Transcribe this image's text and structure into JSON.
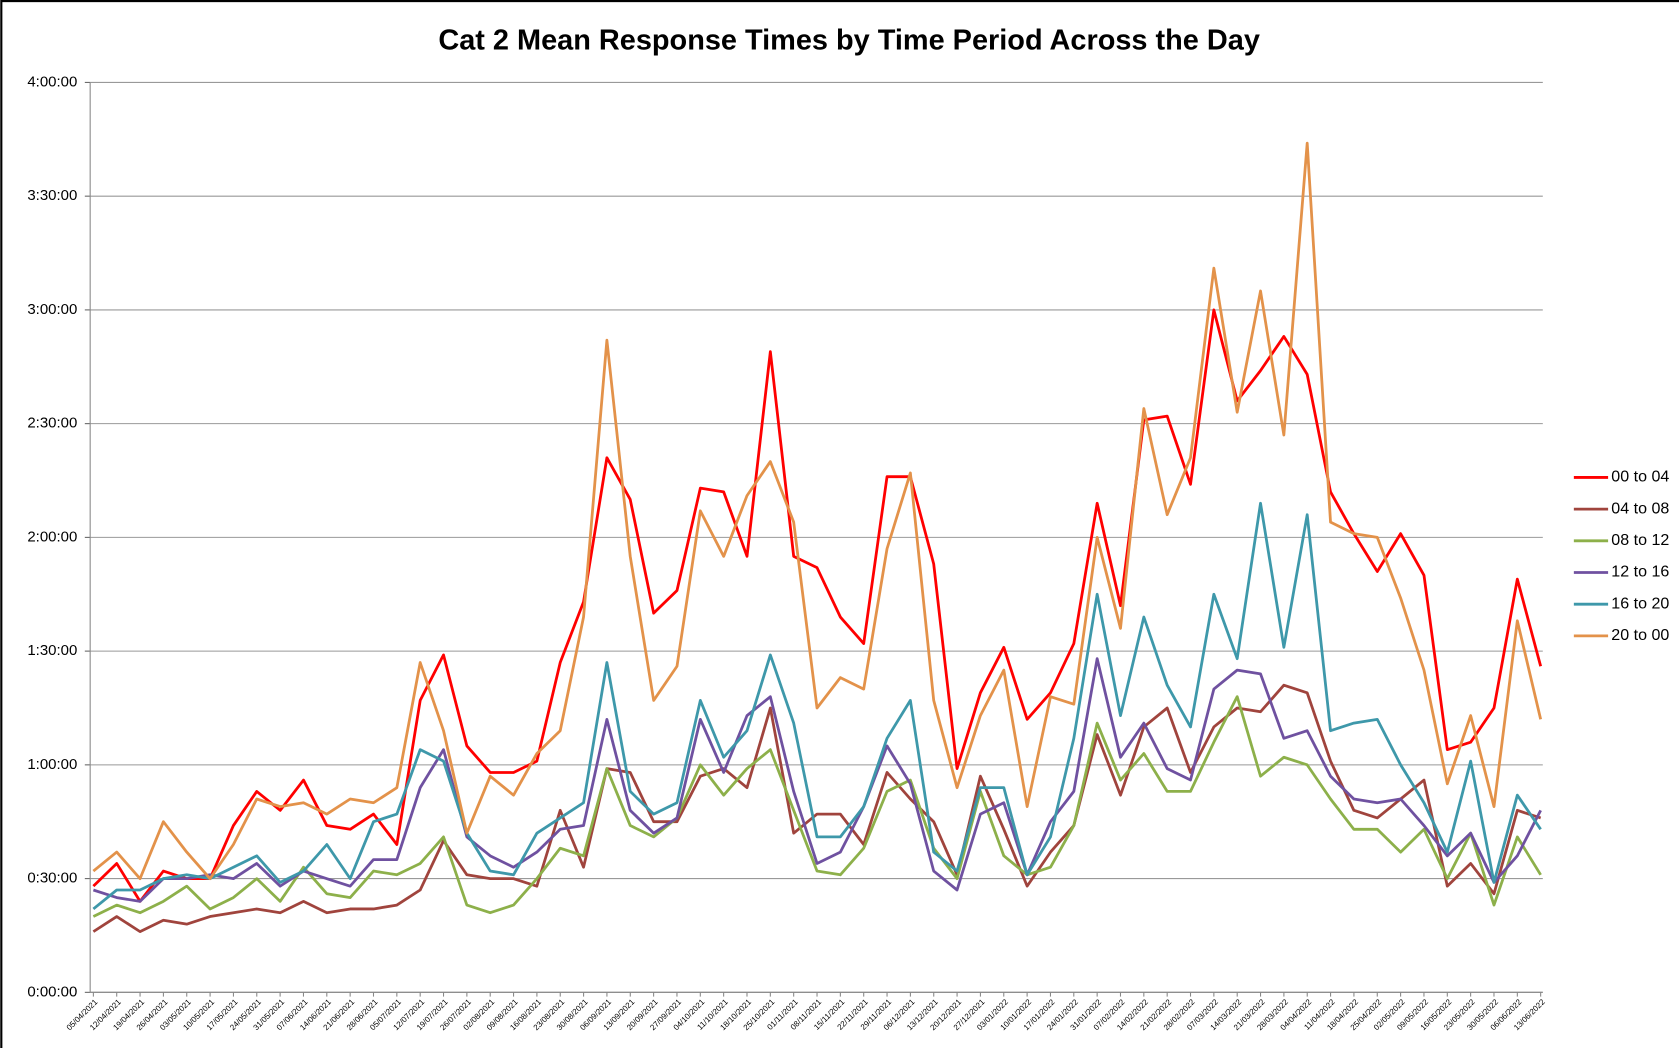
{
  "chart_data": {
    "type": "line",
    "title": "Cat 2 Mean Response Times by Time Period Across the Day",
    "x": [
      "05/04/2021",
      "12/04/2021",
      "19/04/2021",
      "26/04/2021",
      "03/05/2021",
      "10/05/2021",
      "17/05/2021",
      "24/05/2021",
      "31/05/2021",
      "07/06/2021",
      "14/06/2021",
      "21/06/2021",
      "28/06/2021",
      "05/07/2021",
      "12/07/2021",
      "19/07/2021",
      "26/07/2021",
      "02/08/2021",
      "09/08/2021",
      "16/08/2021",
      "23/08/2021",
      "30/08/2021",
      "06/09/2021",
      "13/09/2021",
      "20/09/2021",
      "27/09/2021",
      "04/10/2021",
      "11/10/2021",
      "18/10/2021",
      "25/10/2021",
      "01/11/2021",
      "08/11/2021",
      "15/11/2021",
      "22/11/2021",
      "29/11/2021",
      "06/12/2021",
      "13/12/2021",
      "20/12/2021",
      "27/12/2021",
      "03/01/2022",
      "10/01/2022",
      "17/01/2022",
      "24/01/2022",
      "31/01/2022",
      "07/02/2022",
      "14/02/2022",
      "21/02/2022",
      "28/02/2022",
      "07/03/2022",
      "14/03/2022",
      "21/03/2022",
      "28/03/2022",
      "04/04/2022",
      "11/04/2022",
      "18/04/2022",
      "25/04/2022",
      "02/05/2022",
      "09/05/2022",
      "16/05/2022",
      "23/05/2022",
      "30/05/2022",
      "06/06/2022",
      "13/06/2022"
    ],
    "series": [
      {
        "name": "00 to 04",
        "color": "#ff0000",
        "values": [
          28,
          34,
          24,
          32,
          30,
          30,
          44,
          53,
          48,
          56,
          44,
          43,
          47,
          39,
          77,
          89,
          65,
          58,
          58,
          61,
          87,
          103,
          141,
          130,
          100,
          106,
          133,
          132,
          115,
          169,
          115,
          112,
          99,
          92,
          136,
          136,
          113,
          59,
          79,
          91,
          72,
          79,
          92,
          129,
          102,
          151,
          152,
          134,
          180,
          156,
          164,
          173,
          163,
          132,
          121,
          111,
          121,
          110,
          64,
          66,
          75,
          109,
          86
        ]
      },
      {
        "name": "04 to 08",
        "color": "#a0443d",
        "values": [
          16,
          20,
          16,
          19,
          18,
          20,
          21,
          22,
          21,
          24,
          21,
          22,
          22,
          23,
          27,
          40,
          31,
          30,
          30,
          28,
          48,
          33,
          59,
          58,
          45,
          45,
          57,
          59,
          54,
          75,
          42,
          47,
          47,
          39,
          58,
          51,
          45,
          31,
          57,
          43,
          28,
          37,
          44,
          68,
          52,
          70,
          75,
          58,
          70,
          75,
          74,
          81,
          79,
          61,
          48,
          46,
          51,
          56,
          28,
          34,
          26,
          48,
          46
        ]
      },
      {
        "name": "08 to 12",
        "color": "#8db04a",
        "values": [
          20,
          23,
          21,
          24,
          28,
          22,
          25,
          30,
          24,
          33,
          26,
          25,
          32,
          31,
          34,
          41,
          23,
          21,
          23,
          30,
          38,
          36,
          59,
          44,
          41,
          46,
          60,
          52,
          59,
          64,
          48,
          32,
          31,
          38,
          53,
          56,
          38,
          30,
          53,
          36,
          31,
          33,
          44,
          71,
          56,
          63,
          53,
          53,
          66,
          78,
          57,
          62,
          60,
          51,
          43,
          43,
          37,
          43,
          30,
          42,
          23,
          41,
          31
        ]
      },
      {
        "name": "12 to 16",
        "color": "#6f51a0",
        "values": [
          27,
          25,
          24,
          30,
          30,
          31,
          30,
          34,
          28,
          32,
          30,
          28,
          35,
          35,
          54,
          64,
          41,
          36,
          33,
          37,
          43,
          44,
          72,
          48,
          42,
          46,
          72,
          58,
          73,
          78,
          53,
          34,
          37,
          49,
          65,
          55,
          32,
          27,
          47,
          50,
          31,
          45,
          53,
          88,
          62,
          71,
          59,
          56,
          80,
          85,
          84,
          67,
          69,
          57,
          51,
          50,
          51,
          44,
          36,
          42,
          29,
          36,
          48
        ]
      },
      {
        "name": "16 to 20",
        "color": "#3e98aa",
        "values": [
          22,
          27,
          27,
          30,
          31,
          30,
          33,
          36,
          29,
          32,
          39,
          30,
          45,
          47,
          64,
          61,
          42,
          32,
          31,
          42,
          46,
          50,
          87,
          53,
          47,
          50,
          77,
          62,
          69,
          89,
          71,
          41,
          41,
          49,
          67,
          77,
          37,
          32,
          54,
          54,
          31,
          41,
          67,
          105,
          73,
          99,
          81,
          70,
          105,
          88,
          129,
          91,
          126,
          69,
          71,
          72,
          60,
          50,
          37,
          61,
          29,
          52,
          43
        ]
      },
      {
        "name": "20 to 00",
        "color": "#e3924a",
        "values": [
          32,
          37,
          30,
          45,
          37,
          30,
          39,
          51,
          49,
          50,
          47,
          51,
          50,
          54,
          87,
          69,
          42,
          57,
          52,
          63,
          69,
          99,
          172,
          115,
          77,
          86,
          127,
          115,
          131,
          140,
          124,
          75,
          83,
          80,
          117,
          137,
          77,
          54,
          73,
          85,
          49,
          78,
          76,
          120,
          96,
          154,
          126,
          141,
          191,
          153,
          185,
          147,
          224,
          124,
          121,
          120,
          104,
          85,
          55,
          73,
          49,
          98,
          72
        ]
      }
    ],
    "ylim": [
      0,
      240
    ],
    "yticks": [
      {
        "value": 0,
        "label": "0:00:00"
      },
      {
        "value": 30,
        "label": "0:30:00"
      },
      {
        "value": 60,
        "label": "1:00:00"
      },
      {
        "value": 90,
        "label": "1:30:00"
      },
      {
        "value": 120,
        "label": "2:00:00"
      },
      {
        "value": 150,
        "label": "2:30:00"
      },
      {
        "value": 180,
        "label": "3:00:00"
      },
      {
        "value": 210,
        "label": "3:30:00"
      },
      {
        "value": 240,
        "label": "4:00:00"
      }
    ],
    "grid": true,
    "legend": "right"
  }
}
